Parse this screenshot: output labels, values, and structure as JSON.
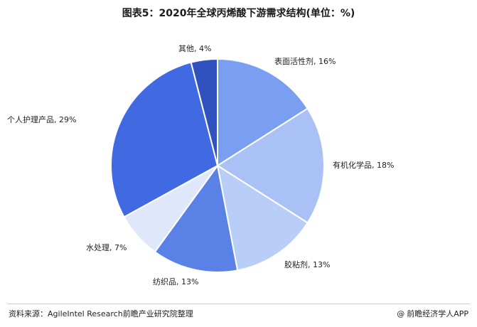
{
  "title": "图表5：2020年全球丙烯酸下游需求结构(单位：%)",
  "footer": {
    "source": "资料来源：AgileIntel Research前瞻产业研究院整理",
    "credit": "前瞻经济学人APP",
    "credit_icon": "at-icon"
  },
  "colors": {
    "表面活性剂": "#7a9ef0",
    "有机化学品": "#a9c1f4",
    "胶粘剂": "#b8cdf7",
    "纺织品": "#5a82e6",
    "水处理": "#dfe7fb",
    "个人护理产品": "#4169e1",
    "其他": "#2f52bf"
  },
  "chart_data": {
    "type": "pie",
    "title": "图表5：2020年全球丙烯酸下游需求结构(单位：%)",
    "unit": "%",
    "slices": [
      {
        "label": "表面活性剂",
        "value": 16,
        "display": "表面活性剂, 16%"
      },
      {
        "label": "有机化学品",
        "value": 18,
        "display": "有机化学品, 18%"
      },
      {
        "label": "胶粘剂",
        "value": 13,
        "display": "胶粘剂, 13%"
      },
      {
        "label": "纺织品",
        "value": 13,
        "display": "纺织品, 13%"
      },
      {
        "label": "水处理",
        "value": 7,
        "display": "水处理, 7%"
      },
      {
        "label": "个人护理产品",
        "value": 29,
        "display": "个人护理产品, 29%"
      },
      {
        "label": "其他",
        "value": 4,
        "display": "其他, 4%"
      }
    ]
  }
}
